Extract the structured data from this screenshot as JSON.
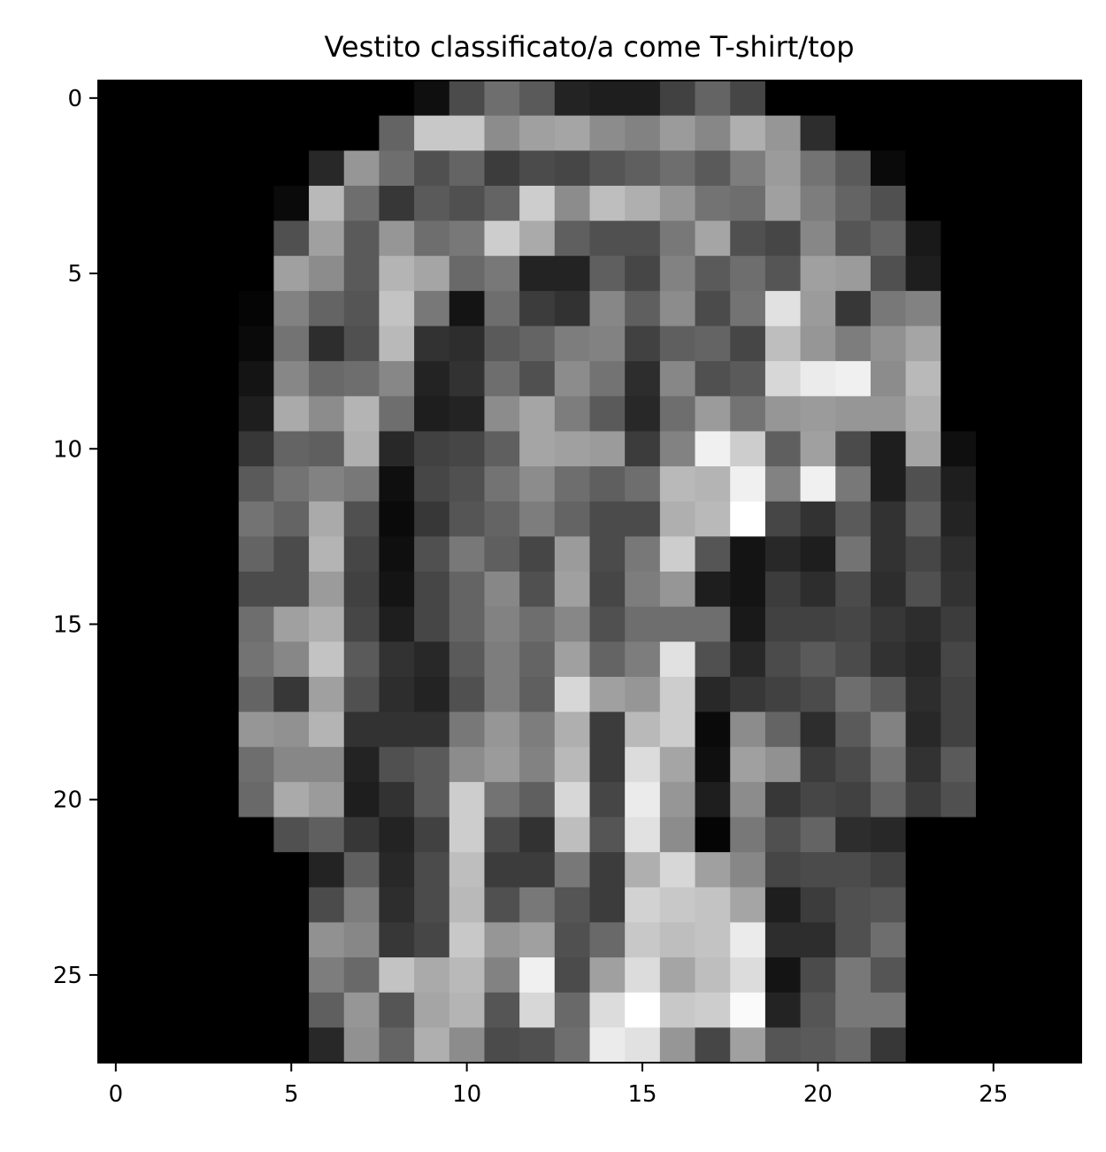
{
  "chart_data": {
    "type": "heatmap",
    "title": "Vestito classificato/a come T-shirt/top",
    "xlabel": "",
    "ylabel": "",
    "colormap": "gray",
    "value_range": [
      0,
      255
    ],
    "xlim": [
      -0.5,
      27.5
    ],
    "ylim": [
      27.5,
      -0.5
    ],
    "x_ticks": [
      0,
      5,
      10,
      15,
      20,
      25
    ],
    "x_tick_labels": [
      "0",
      "5",
      "10",
      "15",
      "20",
      "25"
    ],
    "y_ticks": [
      0,
      5,
      10,
      15,
      20,
      25
    ],
    "y_tick_labels": [
      "0",
      "5",
      "10",
      "15",
      "20",
      "25"
    ],
    "grid": false,
    "rows": 28,
    "cols": 28,
    "values": [
      [
        0,
        0,
        0,
        0,
        0,
        0,
        0,
        0,
        0,
        15,
        75,
        110,
        90,
        35,
        30,
        30,
        65,
        100,
        70,
        0,
        0,
        0,
        0,
        0,
        0,
        0,
        0,
        0
      ],
      [
        0,
        0,
        0,
        0,
        0,
        0,
        0,
        0,
        100,
        200,
        200,
        140,
        160,
        165,
        140,
        130,
        155,
        135,
        175,
        150,
        45,
        0,
        0,
        0,
        0,
        0,
        0,
        0
      ],
      [
        0,
        0,
        0,
        0,
        0,
        0,
        40,
        150,
        110,
        80,
        100,
        60,
        75,
        70,
        85,
        95,
        110,
        90,
        125,
        155,
        115,
        90,
        10,
        0,
        0,
        0,
        0,
        0
      ],
      [
        0,
        0,
        0,
        0,
        0,
        10,
        185,
        110,
        55,
        90,
        80,
        100,
        205,
        140,
        190,
        175,
        150,
        115,
        110,
        160,
        125,
        100,
        80,
        0,
        0,
        0,
        0,
        0
      ],
      [
        0,
        0,
        0,
        0,
        0,
        80,
        160,
        90,
        150,
        110,
        120,
        205,
        170,
        95,
        80,
        80,
        120,
        165,
        80,
        70,
        135,
        85,
        100,
        25,
        0,
        0,
        0,
        0
      ],
      [
        0,
        0,
        0,
        0,
        0,
        160,
        140,
        90,
        180,
        165,
        105,
        120,
        35,
        35,
        95,
        70,
        130,
        90,
        110,
        85,
        160,
        155,
        80,
        30,
        0,
        0,
        0,
        0
      ],
      [
        0,
        0,
        0,
        0,
        5,
        130,
        100,
        85,
        195,
        120,
        20,
        110,
        60,
        50,
        135,
        95,
        140,
        75,
        115,
        225,
        155,
        55,
        120,
        130,
        0,
        0,
        0,
        0
      ],
      [
        0,
        0,
        0,
        0,
        10,
        115,
        45,
        80,
        185,
        50,
        45,
        90,
        100,
        125,
        130,
        65,
        95,
        100,
        70,
        190,
        150,
        125,
        145,
        165,
        0,
        0,
        0,
        0
      ],
      [
        0,
        0,
        0,
        0,
        20,
        135,
        105,
        110,
        135,
        35,
        50,
        110,
        80,
        140,
        115,
        45,
        135,
        80,
        90,
        215,
        235,
        240,
        140,
        185,
        0,
        0,
        0,
        0
      ],
      [
        0,
        0,
        0,
        0,
        30,
        170,
        140,
        180,
        110,
        30,
        35,
        140,
        165,
        125,
        90,
        40,
        110,
        155,
        115,
        150,
        155,
        150,
        150,
        175,
        0,
        0,
        0,
        0
      ],
      [
        0,
        0,
        0,
        0,
        55,
        100,
        95,
        175,
        40,
        65,
        70,
        95,
        165,
        160,
        155,
        60,
        130,
        240,
        205,
        95,
        160,
        75,
        30,
        165,
        15,
        0,
        0,
        0
      ],
      [
        0,
        0,
        0,
        0,
        90,
        115,
        130,
        120,
        15,
        70,
        80,
        115,
        140,
        110,
        95,
        110,
        185,
        180,
        240,
        130,
        240,
        120,
        30,
        80,
        30,
        0,
        0,
        0
      ],
      [
        0,
        0,
        0,
        0,
        115,
        100,
        170,
        80,
        10,
        55,
        85,
        100,
        125,
        100,
        75,
        75,
        175,
        185,
        255,
        70,
        50,
        90,
        50,
        95,
        35,
        0,
        0,
        0
      ],
      [
        0,
        0,
        0,
        0,
        100,
        75,
        180,
        70,
        15,
        80,
        120,
        95,
        70,
        155,
        75,
        120,
        205,
        85,
        20,
        40,
        30,
        115,
        50,
        70,
        45,
        0,
        0,
        0
      ],
      [
        0,
        0,
        0,
        0,
        75,
        75,
        155,
        65,
        20,
        70,
        100,
        135,
        80,
        160,
        70,
        125,
        150,
        30,
        20,
        60,
        45,
        75,
        45,
        80,
        50,
        0,
        0,
        0
      ],
      [
        0,
        0,
        0,
        0,
        110,
        160,
        175,
        70,
        30,
        70,
        100,
        130,
        110,
        135,
        80,
        110,
        110,
        110,
        25,
        65,
        65,
        70,
        55,
        45,
        60,
        0,
        0,
        0
      ],
      [
        0,
        0,
        0,
        0,
        115,
        135,
        195,
        90,
        50,
        40,
        90,
        125,
        100,
        160,
        100,
        125,
        225,
        80,
        40,
        75,
        90,
        75,
        50,
        40,
        70,
        0,
        0,
        0
      ],
      [
        0,
        0,
        0,
        0,
        100,
        55,
        160,
        80,
        45,
        35,
        80,
        125,
        95,
        215,
        160,
        150,
        205,
        40,
        55,
        65,
        75,
        110,
        90,
        45,
        65,
        0,
        0,
        0
      ],
      [
        0,
        0,
        0,
        0,
        150,
        145,
        180,
        50,
        50,
        50,
        120,
        150,
        125,
        175,
        60,
        185,
        205,
        10,
        140,
        100,
        45,
        90,
        130,
        40,
        65,
        0,
        0,
        0
      ],
      [
        0,
        0,
        0,
        0,
        110,
        135,
        135,
        35,
        80,
        90,
        140,
        155,
        130,
        185,
        60,
        220,
        165,
        15,
        160,
        145,
        60,
        75,
        115,
        50,
        90,
        0,
        0,
        0
      ],
      [
        0,
        0,
        0,
        0,
        105,
        170,
        155,
        30,
        50,
        90,
        205,
        115,
        95,
        215,
        70,
        235,
        150,
        30,
        140,
        55,
        70,
        65,
        100,
        60,
        80,
        0,
        0,
        0
      ],
      [
        0,
        0,
        0,
        0,
        0,
        80,
        95,
        55,
        35,
        65,
        205,
        75,
        50,
        190,
        85,
        225,
        140,
        5,
        120,
        80,
        100,
        45,
        40,
        0,
        0,
        0,
        0,
        0
      ],
      [
        0,
        0,
        0,
        0,
        0,
        0,
        35,
        95,
        40,
        75,
        190,
        60,
        60,
        120,
        60,
        175,
        215,
        160,
        135,
        70,
        75,
        75,
        65,
        0,
        0,
        0,
        0,
        0
      ],
      [
        0,
        0,
        0,
        0,
        0,
        0,
        75,
        125,
        45,
        75,
        185,
        80,
        120,
        85,
        60,
        210,
        200,
        195,
        165,
        30,
        60,
        80,
        85,
        0,
        0,
        0,
        0,
        0
      ],
      [
        0,
        0,
        0,
        0,
        0,
        0,
        145,
        135,
        55,
        70,
        200,
        150,
        160,
        80,
        105,
        200,
        190,
        195,
        235,
        45,
        45,
        80,
        110,
        0,
        0,
        0,
        0,
        0
      ],
      [
        0,
        0,
        0,
        0,
        0,
        0,
        125,
        105,
        195,
        170,
        185,
        130,
        240,
        75,
        160,
        220,
        165,
        190,
        220,
        20,
        75,
        120,
        85,
        0,
        0,
        0,
        0,
        0
      ],
      [
        0,
        0,
        0,
        0,
        0,
        0,
        95,
        150,
        85,
        165,
        180,
        85,
        215,
        105,
        220,
        255,
        200,
        205,
        250,
        35,
        85,
        120,
        120,
        0,
        0,
        0,
        0,
        0
      ],
      [
        0,
        0,
        0,
        0,
        0,
        0,
        40,
        145,
        100,
        175,
        140,
        75,
        80,
        110,
        235,
        225,
        150,
        70,
        160,
        85,
        90,
        105,
        55,
        0,
        0,
        0,
        0,
        0
      ]
    ]
  }
}
